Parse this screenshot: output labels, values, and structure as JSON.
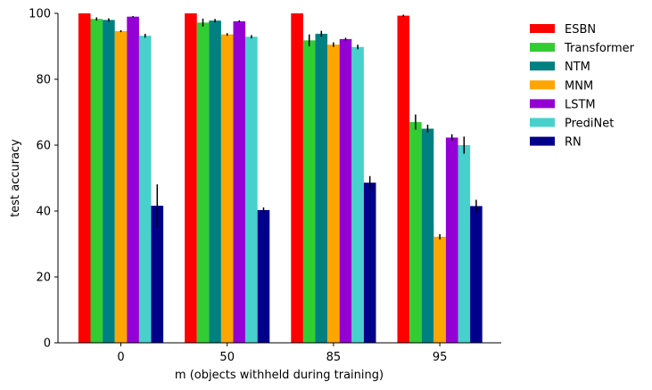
{
  "chart_data": {
    "type": "bar",
    "xlabel": "m (objects withheld during training)",
    "ylabel": "test accuracy",
    "categories": [
      "0",
      "50",
      "85",
      "95"
    ],
    "ylim": [
      0,
      100
    ],
    "yticks": [
      0,
      20,
      40,
      60,
      80,
      100
    ],
    "grid": false,
    "legend_position": "right, outside plot",
    "series": [
      {
        "name": "ESBN",
        "color": "#ff0000",
        "values": [
          100,
          100,
          100,
          99.3
        ],
        "errors": [
          0.0,
          0.0,
          0.0,
          0.3
        ]
      },
      {
        "name": "Transformer",
        "color": "#32cd32",
        "values": [
          98.3,
          97.2,
          91.8,
          67.0
        ],
        "errors": [
          0.5,
          1.2,
          1.8,
          2.3
        ]
      },
      {
        "name": "NTM",
        "color": "#008080",
        "values": [
          98.0,
          97.8,
          93.8,
          65.0
        ],
        "errors": [
          0.5,
          0.5,
          0.9,
          1.2
        ]
      },
      {
        "name": "MNM",
        "color": "#ffa500",
        "values": [
          94.6,
          93.6,
          90.5,
          32.2
        ],
        "errors": [
          0.3,
          0.4,
          0.7,
          0.8
        ]
      },
      {
        "name": "LSTM",
        "color": "#9400d3",
        "values": [
          99.0,
          97.6,
          92.2,
          62.3
        ],
        "errors": [
          0.2,
          0.3,
          0.4,
          1.0
        ]
      },
      {
        "name": "PrediNet",
        "color": "#48d1cc",
        "values": [
          93.2,
          92.9,
          89.8,
          60.0
        ],
        "errors": [
          0.6,
          0.5,
          0.7,
          2.6
        ]
      },
      {
        "name": "RN",
        "color": "#00008b",
        "values": [
          41.6,
          40.3,
          48.6,
          41.5
        ],
        "errors": [
          6.5,
          0.8,
          2.0,
          1.9
        ]
      }
    ]
  }
}
